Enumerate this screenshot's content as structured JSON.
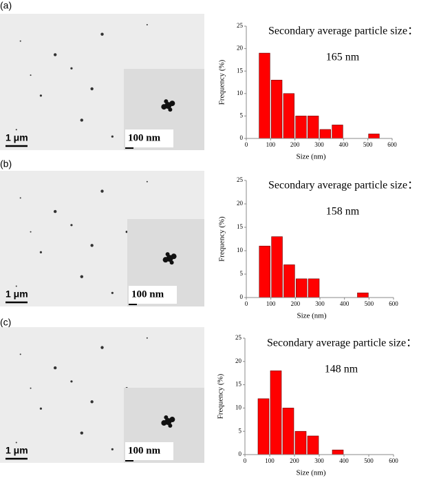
{
  "chart_data": [
    {
      "type": "histogram",
      "title": "Secondary average particle size：",
      "annotation": "165 nm",
      "xlabel": "Size (nm)",
      "ylabel": "Frequency (%)",
      "bins": [
        50,
        100,
        150,
        200,
        250,
        300,
        350,
        400,
        450,
        500,
        550
      ],
      "values": [
        19,
        13,
        10,
        5,
        5,
        2,
        3,
        0,
        0,
        1
      ],
      "color": "#ff0000",
      "xlim": [
        0,
        600
      ],
      "xticks": [
        0,
        100,
        200,
        300,
        400,
        500,
        600
      ],
      "ylim": [
        0,
        25
      ],
      "yticks": [
        0,
        5,
        10,
        15,
        20,
        25
      ]
    },
    {
      "type": "histogram",
      "title": "Secondary average particle size：",
      "annotation": "158 nm",
      "xlabel": "Size (nm)",
      "ylabel": "Frequency (%)",
      "bins": [
        50,
        100,
        150,
        200,
        250,
        300,
        350,
        400,
        450,
        500
      ],
      "values": [
        11,
        13,
        7,
        4,
        4,
        0,
        0,
        0,
        1
      ],
      "color": "#ff0000",
      "xlim": [
        0,
        600
      ],
      "xticks": [
        0,
        100,
        200,
        300,
        400,
        500,
        600
      ],
      "ylim": [
        0,
        25
      ],
      "yticks": [
        0,
        5,
        10,
        15,
        20,
        25
      ]
    },
    {
      "type": "histogram",
      "title": "Secondary average particle size：",
      "annotation": "148 nm",
      "xlabel": "Size (nm)",
      "ylabel": "Frequency (%)",
      "bins": [
        50,
        100,
        150,
        200,
        250,
        300,
        350,
        400
      ],
      "values": [
        12,
        18,
        10,
        5,
        4,
        0,
        1
      ],
      "color": "#ff0000",
      "xlim": [
        0,
        600
      ],
      "xticks": [
        0,
        100,
        200,
        300,
        400,
        500,
        600
      ],
      "ylim": [
        0,
        25
      ],
      "yticks": [
        0,
        5,
        10,
        15,
        20,
        25
      ]
    }
  ],
  "panels": [
    {
      "label": "(a)",
      "scale": "1 μm",
      "inset_scale": "100 nm"
    },
    {
      "label": "(b)",
      "scale": "1 μm",
      "inset_scale": "100 nm"
    },
    {
      "label": "(c)",
      "scale": "1 μm",
      "inset_scale": "100 nm"
    }
  ]
}
